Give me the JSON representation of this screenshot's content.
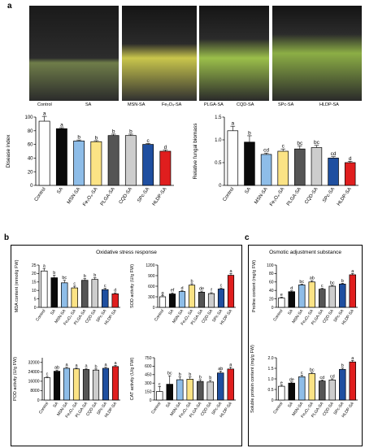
{
  "panel_labels": {
    "a": "a",
    "b": "b",
    "c": "c"
  },
  "photo_captions": [
    "Control",
    "SA",
    "MSN-SA",
    "Fe₃O₄-SA",
    "PLGA-SA",
    "CQD-SA",
    "SPc-SA",
    "HLDP-SA"
  ],
  "frames": {
    "oxidative_title": "Oxidative stress response",
    "osmotic_title": "Osmotic adjustment substance"
  },
  "colors": [
    "#ffffff",
    "#0a0a0a",
    "#8ebde8",
    "#fbe385",
    "#555555",
    "#cdcdcd",
    "#1f4fa0",
    "#e01e1e"
  ],
  "chart_data": [
    {
      "type": "bar",
      "ylabel": "Disease index",
      "ylim": [
        0,
        100
      ],
      "yticks": [
        0,
        20,
        40,
        60,
        80,
        100
      ],
      "categories": [
        "Control",
        "SA",
        "MSN-SA",
        "Fe₃O₄-SA",
        "PLGA-SA",
        "CQD-SA",
        "SPc-SA",
        "HLDP-SA"
      ],
      "values": [
        94,
        83,
        65,
        64,
        73,
        73,
        60,
        50
      ],
      "errors": [
        7,
        1.5,
        1.5,
        1.5,
        2,
        2,
        1.5,
        2
      ],
      "letters": [
        "a",
        "a",
        "b",
        "b",
        "b",
        "b",
        "c",
        "d"
      ]
    },
    {
      "type": "bar",
      "ylabel": "Relative fungal biomass",
      "ylim": [
        0,
        1.5
      ],
      "yticks": [
        "0",
        "0.5",
        "1.0",
        "1.5"
      ],
      "categories": [
        "Control",
        "SA",
        "MSN-SA",
        "Fe₃O₄-SA",
        "PLGA-SA",
        "CQD-SA",
        "SPc-SA",
        "HLDP-SA"
      ],
      "values": [
        1.2,
        0.95,
        0.68,
        0.75,
        0.8,
        0.83,
        0.6,
        0.5
      ],
      "errors": [
        0.1,
        0.14,
        0.03,
        0.05,
        0.07,
        0.05,
        0.03,
        0.03
      ],
      "letters": [
        "a",
        "b",
        "cd",
        "c",
        "bc",
        "bc",
        "cd",
        "d"
      ]
    },
    {
      "type": "bar",
      "ylabel": "MDA content (mmol/g FW)",
      "ylim": [
        0,
        25
      ],
      "yticks": [
        0,
        5,
        10,
        15,
        20,
        25
      ],
      "categories": [
        "Control",
        "SA",
        "MSN-SA",
        "Fe₃O₄-SA",
        "PLGA-SA",
        "CQD-SA",
        "SPc-SA",
        "HLDP-SA"
      ],
      "values": [
        21.5,
        17.5,
        14.5,
        11.5,
        16,
        16.5,
        10.5,
        8
      ],
      "errors": [
        1.5,
        1.5,
        1.5,
        1,
        1,
        1,
        0.8,
        0.6
      ],
      "letters": [
        "a",
        "b",
        "bc",
        "c",
        "b",
        "b",
        "c",
        "d"
      ]
    },
    {
      "type": "bar",
      "ylabel": "SOD activity (U/g FW)",
      "ylim": [
        0,
        1200
      ],
      "yticks": [
        0,
        300,
        600,
        900,
        1200
      ],
      "categories": [
        "Control",
        "SA",
        "MSN-SA",
        "Fe₃O₄-SA",
        "PLGA-SA",
        "CQD-SA",
        "SPc-SA",
        "HLDP-SA"
      ],
      "values": [
        300,
        380,
        450,
        630,
        430,
        390,
        520,
        910
      ],
      "errors": [
        30,
        30,
        25,
        40,
        30,
        25,
        30,
        50
      ],
      "letters": [
        "g",
        "ef",
        "d",
        "b",
        "de",
        "f",
        "c",
        "a"
      ]
    },
    {
      "type": "bar",
      "ylabel": "POD activity (U/g FW)",
      "ylim": [
        0,
        36000
      ],
      "yticks": [
        0,
        8000,
        16000,
        24000,
        32000
      ],
      "categories": [
        "Control",
        "SA",
        "MSN-SA",
        "Fe₃O₄-SA",
        "PLGA-SA",
        "CQD-SA",
        "SPc-SA",
        "HLDP-SA"
      ],
      "values": [
        19000,
        24500,
        27000,
        26500,
        26000,
        25500,
        27000,
        28500
      ],
      "errors": [
        1000,
        1000,
        900,
        900,
        900,
        900,
        900,
        1000
      ],
      "letters": [
        "c",
        "ab",
        "a",
        "a",
        "a",
        "b",
        "a",
        "a"
      ]
    },
    {
      "type": "bar",
      "ylabel": "CAT activity (U/g FW)",
      "ylim": [
        0,
        750
      ],
      "yticks": [
        0,
        150,
        300,
        450,
        600,
        750
      ],
      "categories": [
        "Control",
        "SA",
        "MSN-SA",
        "Fe₃O₄-SA",
        "PLGA-SA",
        "CQD-SA",
        "SPc-SA",
        "HLDP-SA"
      ],
      "values": [
        150,
        280,
        360,
        370,
        330,
        320,
        480,
        550
      ],
      "errors": [
        90,
        150,
        50,
        40,
        30,
        30,
        35,
        35
      ],
      "letters": [
        "c",
        "bc",
        "b",
        "b",
        "b",
        "b",
        "ab",
        "a"
      ]
    },
    {
      "type": "bar",
      "ylabel": "Proline content (mg/g FW)",
      "ylim": [
        0,
        100
      ],
      "yticks": [
        0,
        20,
        40,
        60,
        80,
        100
      ],
      "categories": [
        "Control",
        "SA",
        "MSN-SA",
        "Fe₃O₄-SA",
        "PLGA-SA",
        "CQD-SA",
        "SPc-SA",
        "HLDP-SA"
      ],
      "values": [
        22,
        37,
        53,
        60,
        43,
        50,
        55,
        77
      ],
      "errors": [
        2,
        2,
        2,
        3,
        2,
        2,
        2,
        3
      ],
      "letters": [
        "e",
        "d",
        "bc",
        "ab",
        "c",
        "bc",
        "b",
        "a"
      ]
    },
    {
      "type": "bar",
      "ylabel": "Soluble protein content (mg/g FW)",
      "ylim": [
        0,
        2.0
      ],
      "yticks": [
        "0",
        "0.5",
        "1.0",
        "1.5",
        "2.0"
      ],
      "categories": [
        "Control",
        "SA",
        "MSN-SA",
        "Fe₃O₄-SA",
        "PLGA-SA",
        "CQD-SA",
        "SPc-SA",
        "HLDP-SA"
      ],
      "values": [
        0.65,
        0.8,
        1.1,
        1.25,
        0.9,
        0.95,
        1.45,
        1.8
      ],
      "errors": [
        0.05,
        0.05,
        0.08,
        0.06,
        0.05,
        0.05,
        0.06,
        0.07
      ],
      "letters": [
        "e",
        "de",
        "c",
        "bc",
        "cd",
        "cd",
        "b",
        "a"
      ]
    }
  ]
}
